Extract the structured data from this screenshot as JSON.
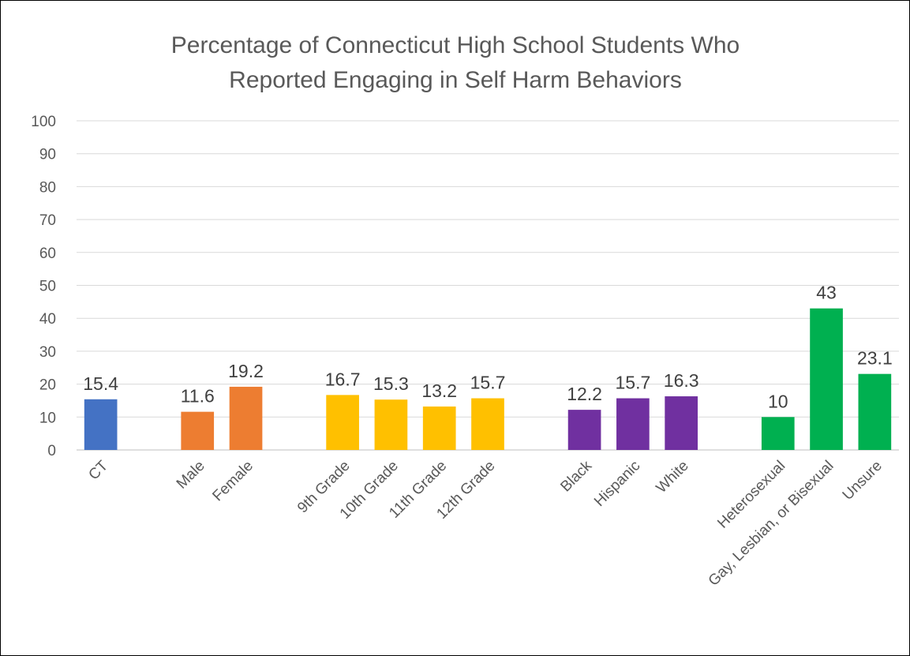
{
  "chart_data": {
    "type": "bar",
    "title_lines": [
      "Percentage of Connecticut High School Students Who",
      "Reported Engaging in Self Harm Behaviors"
    ],
    "xlabel": "",
    "ylabel": "",
    "ylim": [
      0,
      100
    ],
    "y_ticks": [
      "0",
      "10",
      "20",
      "30",
      "40",
      "50",
      "60",
      "70",
      "80",
      "90",
      "100"
    ],
    "grid": true,
    "legend": "none",
    "groups": [
      {
        "color": "#4472C4",
        "bars": [
          {
            "category": "CT",
            "value": 15.4,
            "label": "15.4"
          }
        ]
      },
      {
        "color": "#ED7D31",
        "bars": [
          {
            "category": "Male",
            "value": 11.6,
            "label": "11.6"
          },
          {
            "category": "Female",
            "value": 19.2,
            "label": "19.2"
          }
        ]
      },
      {
        "color": "#FFC000",
        "bars": [
          {
            "category": "9th Grade",
            "value": 16.7,
            "label": "16.7"
          },
          {
            "category": "10th Grade",
            "value": 15.3,
            "label": "15.3"
          },
          {
            "category": "11th Grade",
            "value": 13.2,
            "label": "13.2"
          },
          {
            "category": "12th Grade",
            "value": 15.7,
            "label": "15.7"
          }
        ]
      },
      {
        "color": "#7030A0",
        "bars": [
          {
            "category": "Black",
            "value": 12.2,
            "label": "12.2"
          },
          {
            "category": "Hispanic",
            "value": 15.7,
            "label": "15.7"
          },
          {
            "category": "White",
            "value": 16.3,
            "label": "16.3"
          }
        ]
      },
      {
        "color": "#00B050",
        "bars": [
          {
            "category": "Heterosexual",
            "value": 10,
            "label": "10"
          },
          {
            "category": "Gay, Lesbian, or Bisexual",
            "value": 43,
            "label": "43"
          },
          {
            "category": "Unsure",
            "value": 23.1,
            "label": "23.1"
          }
        ]
      }
    ]
  }
}
